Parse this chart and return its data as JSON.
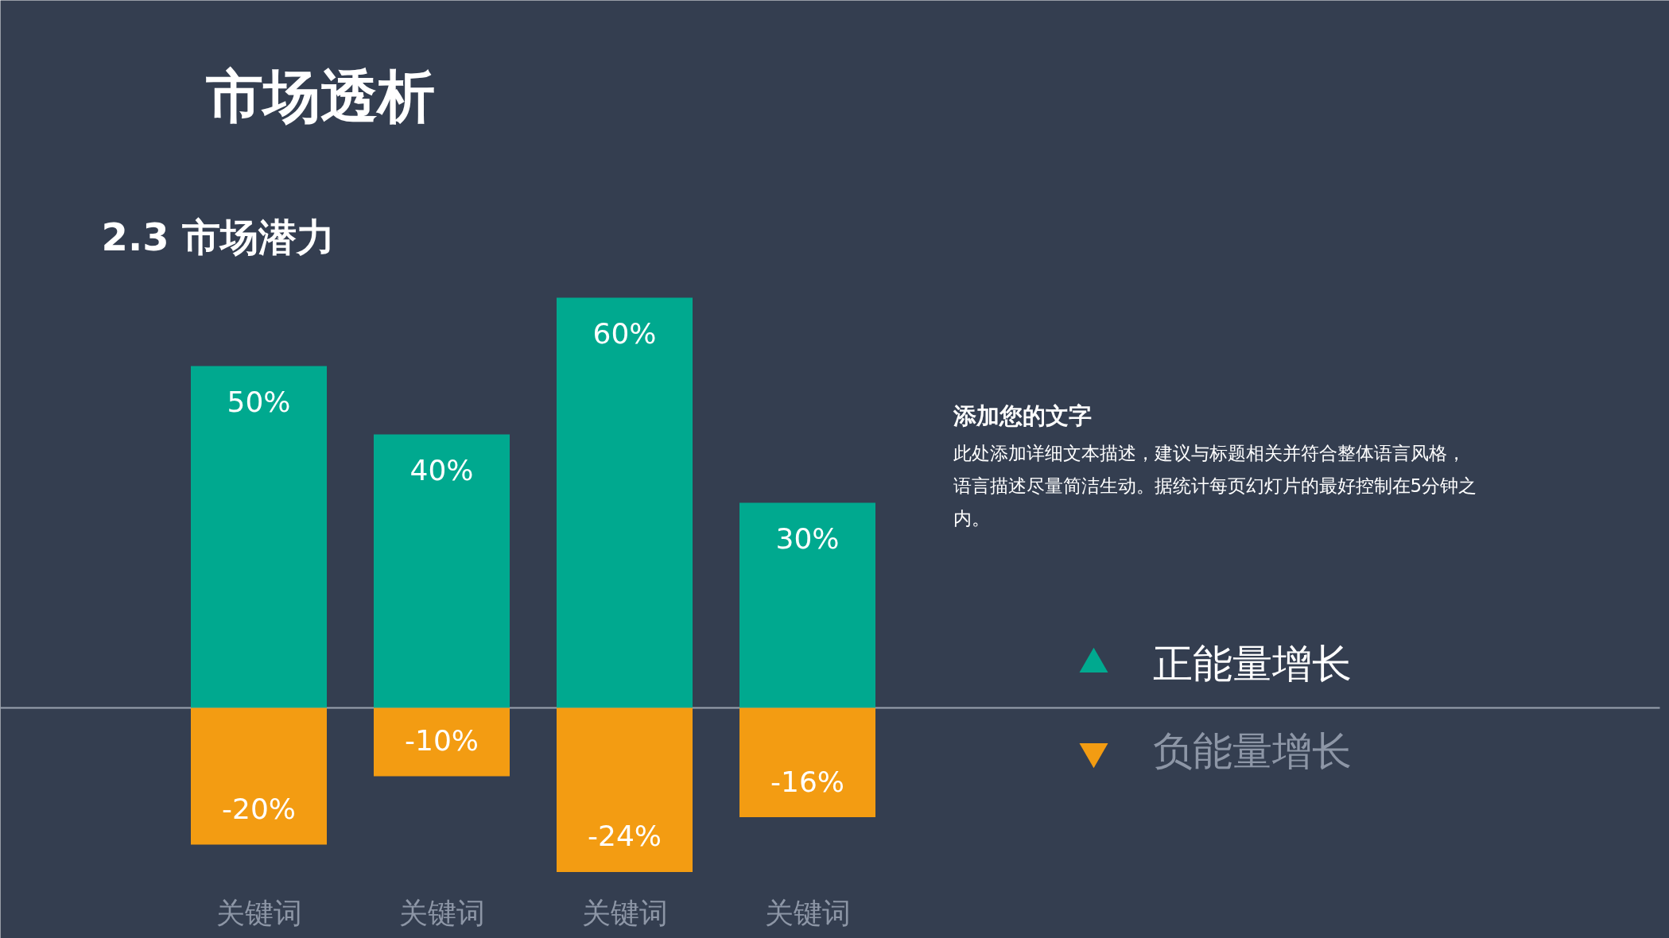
{
  "chart_data": {
    "type": "bar",
    "title": "市场透析",
    "subtitle": "2.3 市场潜力",
    "categories": [
      "关键词",
      "关键词",
      "关键词",
      "关键词"
    ],
    "series": [
      {
        "name": "正能量增长",
        "color": "#00a98f",
        "values": [
          50,
          40,
          60,
          30
        ],
        "value_labels": [
          "50%",
          "40%",
          "60%",
          "30%"
        ]
      },
      {
        "name": "负能量增长",
        "color": "#f39c12",
        "values": [
          -20,
          -10,
          -24,
          -16
        ],
        "value_labels": [
          "-20%",
          "-10%",
          "-24%",
          "-16%"
        ]
      }
    ],
    "legend": "right",
    "grid": false,
    "stacked": true,
    "annotations": [
      "添加您的文字",
      "此处添加详细文本描述，建议与标题相关并符合整体语言风格，语言描述尽量简洁生动。据统计每页幻灯片的最好控制在5分钟之内。"
    ]
  }
}
